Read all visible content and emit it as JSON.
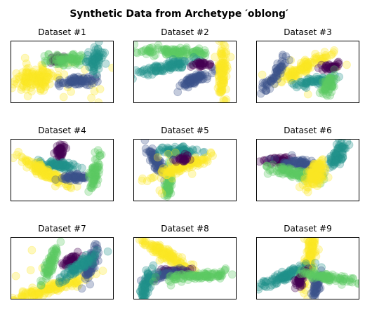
{
  "figure": {
    "suptitle": "Synthetic Data from Archetype ′oblong′"
  },
  "palette": {
    "purple": "#440154",
    "blue": "#3b528b",
    "teal": "#21918c",
    "green": "#5ec962",
    "yellow": "#fde725"
  },
  "chart_data": [
    {
      "type": "scatter",
      "title": "Dataset #1",
      "axes": "hidden",
      "grid": false,
      "clusters": [
        {
          "color": "yellow",
          "cx": 0.24,
          "cy": 0.4,
          "length": 0.28,
          "width": 0.22,
          "angle": 10,
          "n": 130,
          "spread_outliers": 18
        },
        {
          "color": "purple",
          "cx": 0.46,
          "cy": 0.7,
          "length": 0.14,
          "width": 0.08,
          "angle": 0,
          "n": 35
        },
        {
          "color": "green",
          "cx": 0.55,
          "cy": 0.7,
          "length": 0.24,
          "width": 0.14,
          "angle": 0,
          "n": 70
        },
        {
          "color": "blue",
          "cx": 0.64,
          "cy": 0.35,
          "length": 0.26,
          "width": 0.09,
          "angle": 8,
          "n": 70
        },
        {
          "color": "teal",
          "cx": 0.82,
          "cy": 0.7,
          "length": 0.14,
          "width": 0.16,
          "angle": 70,
          "n": 65
        }
      ]
    },
    {
      "type": "scatter",
      "title": "Dataset #2",
      "axes": "hidden",
      "grid": false,
      "clusters": [
        {
          "color": "green",
          "cx": 0.38,
          "cy": 0.82,
          "length": 0.42,
          "width": 0.09,
          "angle": -2,
          "n": 110
        },
        {
          "color": "teal",
          "cx": 0.32,
          "cy": 0.58,
          "length": 0.4,
          "width": 0.09,
          "angle": 12,
          "n": 95
        },
        {
          "color": "purple",
          "cx": 0.66,
          "cy": 0.62,
          "length": 0.1,
          "width": 0.08,
          "angle": 0,
          "n": 30
        },
        {
          "color": "blue",
          "cx": 0.6,
          "cy": 0.38,
          "length": 0.22,
          "width": 0.09,
          "angle": 25,
          "n": 70
        },
        {
          "color": "yellow",
          "cx": 0.86,
          "cy": 0.5,
          "length": 0.4,
          "width": 0.1,
          "angle": 88,
          "n": 110
        }
      ]
    },
    {
      "type": "scatter",
      "title": "Dataset #3",
      "axes": "hidden",
      "grid": false,
      "clusters": [
        {
          "color": "yellow",
          "cx": 0.45,
          "cy": 0.55,
          "length": 0.38,
          "width": 0.1,
          "angle": 28,
          "n": 110,
          "spread_outliers": 8
        },
        {
          "color": "blue",
          "cx": 0.18,
          "cy": 0.45,
          "length": 0.24,
          "width": 0.09,
          "angle": 55,
          "n": 55
        },
        {
          "color": "purple",
          "cx": 0.73,
          "cy": 0.58,
          "length": 0.16,
          "width": 0.07,
          "angle": 10,
          "n": 35
        },
        {
          "color": "teal",
          "cx": 0.55,
          "cy": 0.35,
          "length": 0.22,
          "width": 0.08,
          "angle": 10,
          "n": 55
        },
        {
          "color": "green",
          "cx": 0.7,
          "cy": 0.3,
          "length": 0.16,
          "width": 0.1,
          "angle": 60,
          "n": 60
        }
      ]
    },
    {
      "type": "scatter",
      "title": "Dataset #4",
      "axes": "hidden",
      "grid": false,
      "clusters": [
        {
          "color": "purple",
          "cx": 0.48,
          "cy": 0.8,
          "length": 0.1,
          "width": 0.09,
          "angle": 80,
          "n": 40
        },
        {
          "color": "teal",
          "cx": 0.45,
          "cy": 0.58,
          "length": 0.26,
          "width": 0.08,
          "angle": -5,
          "n": 80
        },
        {
          "color": "yellow",
          "cx": 0.35,
          "cy": 0.45,
          "length": 0.36,
          "width": 0.1,
          "angle": -30,
          "n": 120
        },
        {
          "color": "blue",
          "cx": 0.62,
          "cy": 0.38,
          "length": 0.18,
          "width": 0.07,
          "angle": 0,
          "n": 55
        },
        {
          "color": "green",
          "cx": 0.82,
          "cy": 0.48,
          "length": 0.24,
          "width": 0.1,
          "angle": 80,
          "n": 70
        }
      ]
    },
    {
      "type": "scatter",
      "title": "Dataset #5",
      "axes": "hidden",
      "grid": false,
      "clusters": [
        {
          "color": "blue",
          "cx": 0.22,
          "cy": 0.65,
          "length": 0.26,
          "width": 0.1,
          "angle": -60,
          "n": 70
        },
        {
          "color": "teal",
          "cx": 0.42,
          "cy": 0.8,
          "length": 0.26,
          "width": 0.09,
          "angle": 0,
          "n": 70
        },
        {
          "color": "green",
          "cx": 0.34,
          "cy": 0.28,
          "length": 0.22,
          "width": 0.09,
          "angle": 85,
          "n": 55
        },
        {
          "color": "yellow",
          "cx": 0.45,
          "cy": 0.55,
          "length": 0.4,
          "width": 0.09,
          "angle": 20,
          "n": 110,
          "spread_outliers": 10
        },
        {
          "color": "purple",
          "cx": 0.48,
          "cy": 0.68,
          "length": 0.1,
          "width": 0.07,
          "angle": 20,
          "n": 25
        }
      ]
    },
    {
      "type": "scatter",
      "title": "Dataset #6",
      "axes": "hidden",
      "grid": false,
      "clusters": [
        {
          "color": "purple",
          "cx": 0.22,
          "cy": 0.65,
          "length": 0.18,
          "width": 0.09,
          "angle": 0,
          "n": 45
        },
        {
          "color": "blue",
          "cx": 0.42,
          "cy": 0.6,
          "length": 0.26,
          "width": 0.09,
          "angle": -8,
          "n": 70
        },
        {
          "color": "green",
          "cx": 0.38,
          "cy": 0.45,
          "length": 0.36,
          "width": 0.11,
          "angle": -15,
          "n": 100
        },
        {
          "color": "teal",
          "cx": 0.78,
          "cy": 0.72,
          "length": 0.2,
          "width": 0.13,
          "angle": 60,
          "n": 70
        },
        {
          "color": "yellow",
          "cx": 0.58,
          "cy": 0.45,
          "length": 0.2,
          "width": 0.16,
          "angle": 60,
          "n": 110
        }
      ]
    },
    {
      "type": "scatter",
      "title": "Dataset #7",
      "axes": "hidden",
      "grid": false,
      "clusters": [
        {
          "color": "yellow",
          "cx": 0.4,
          "cy": 0.18,
          "length": 0.52,
          "width": 0.1,
          "angle": 18,
          "n": 140,
          "spread_outliers": 6
        },
        {
          "color": "green",
          "cx": 0.38,
          "cy": 0.58,
          "length": 0.26,
          "width": 0.1,
          "angle": 70,
          "n": 70
        },
        {
          "color": "purple",
          "cx": 0.58,
          "cy": 0.62,
          "length": 0.14,
          "width": 0.08,
          "angle": 30,
          "n": 35
        },
        {
          "color": "blue",
          "cx": 0.78,
          "cy": 0.58,
          "length": 0.26,
          "width": 0.11,
          "angle": 70,
          "n": 75
        },
        {
          "color": "teal",
          "cx": 0.68,
          "cy": 0.55,
          "length": 0.28,
          "width": 0.1,
          "angle": 35,
          "n": 85
        }
      ]
    },
    {
      "type": "scatter",
      "title": "Dataset #8",
      "axes": "hidden",
      "grid": false,
      "clusters": [
        {
          "color": "yellow",
          "cx": 0.32,
          "cy": 0.72,
          "length": 0.38,
          "width": 0.11,
          "angle": -30,
          "n": 120
        },
        {
          "color": "purple",
          "cx": 0.4,
          "cy": 0.45,
          "length": 0.2,
          "width": 0.07,
          "angle": 0,
          "n": 40
        },
        {
          "color": "blue",
          "cx": 0.28,
          "cy": 0.38,
          "length": 0.26,
          "width": 0.08,
          "angle": 15,
          "n": 60
        },
        {
          "color": "teal",
          "cx": 0.12,
          "cy": 0.2,
          "length": 0.24,
          "width": 0.1,
          "angle": 75,
          "n": 70
        },
        {
          "color": "green",
          "cx": 0.66,
          "cy": 0.38,
          "length": 0.42,
          "width": 0.08,
          "angle": 5,
          "n": 100
        }
      ]
    },
    {
      "type": "scatter",
      "title": "Dataset #9",
      "axes": "hidden",
      "grid": false,
      "clusters": [
        {
          "color": "yellow",
          "cx": 0.52,
          "cy": 0.68,
          "length": 0.36,
          "width": 0.11,
          "angle": 82,
          "n": 120
        },
        {
          "color": "teal",
          "cx": 0.3,
          "cy": 0.4,
          "length": 0.38,
          "width": 0.1,
          "angle": 22,
          "n": 100
        },
        {
          "color": "purple",
          "cx": 0.42,
          "cy": 0.3,
          "length": 0.12,
          "width": 0.08,
          "angle": 60,
          "n": 35
        },
        {
          "color": "blue",
          "cx": 0.58,
          "cy": 0.25,
          "length": 0.18,
          "width": 0.09,
          "angle": 75,
          "n": 50
        },
        {
          "color": "green",
          "cx": 0.72,
          "cy": 0.35,
          "length": 0.34,
          "width": 0.08,
          "angle": -8,
          "n": 90
        }
      ]
    }
  ]
}
